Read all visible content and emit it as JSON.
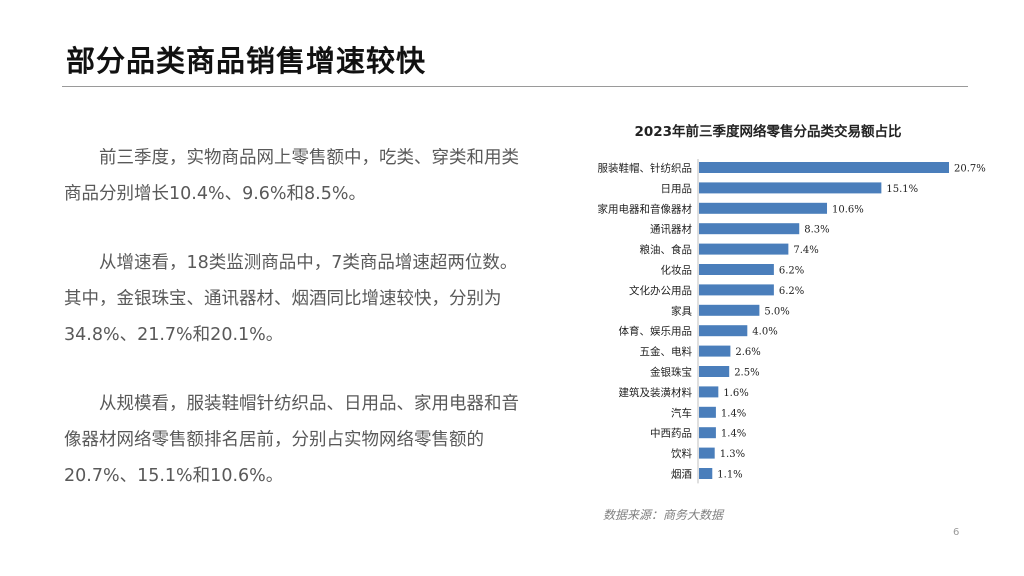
{
  "slide": {
    "title": "部分品类商品销售增速较快",
    "paragraphs": [
      "前三季度，实物商品网上零售额中，吃类、穿类和用类商品分别增长10.4%、9.6%和8.5%。",
      "从增速看，18类监测商品中，7类商品增速超两位数。其中，金银珠宝、通讯器材、烟酒同比增速较快，分别为34.8%、21.7%和20.1%。",
      "从规模看，服装鞋帽针纺织品、日用品、家用电器和音像器材网络零售额排名居前，分别占实物网络零售额的20.7%、15.1%和10.6%。"
    ],
    "source": "数据来源：商务大数据",
    "page_number": "6"
  },
  "chart_data": {
    "type": "bar",
    "orientation": "horizontal",
    "title": "2023年前三季度网络零售分品类交易额占比",
    "categories": [
      "服装鞋帽、针纺织品",
      "日用品",
      "家用电器和音像器材",
      "通讯器材",
      "粮油、食品",
      "化妆品",
      "文化办公用品",
      "家具",
      "体育、娱乐用品",
      "五金、电料",
      "金银珠宝",
      "建筑及装潢材料",
      "汽车",
      "中西药品",
      "饮料",
      "烟酒"
    ],
    "values": [
      20.7,
      15.1,
      10.6,
      8.3,
      7.4,
      6.2,
      6.2,
      5.0,
      4.0,
      2.6,
      2.5,
      1.6,
      1.4,
      1.4,
      1.3,
      1.1
    ],
    "value_labels": [
      "20.7%",
      "15.1%",
      "10.6%",
      "8.3%",
      "7.4%",
      "6.2%",
      "6.2%",
      "5.0%",
      "4.0%",
      "2.6%",
      "2.5%",
      "1.6%",
      "1.4%",
      "1.4%",
      "1.3%",
      "1.1%"
    ],
    "bar_color": "#4a7ebb",
    "xlim": [
      0,
      20.7
    ],
    "grid": false,
    "legend": "none"
  }
}
